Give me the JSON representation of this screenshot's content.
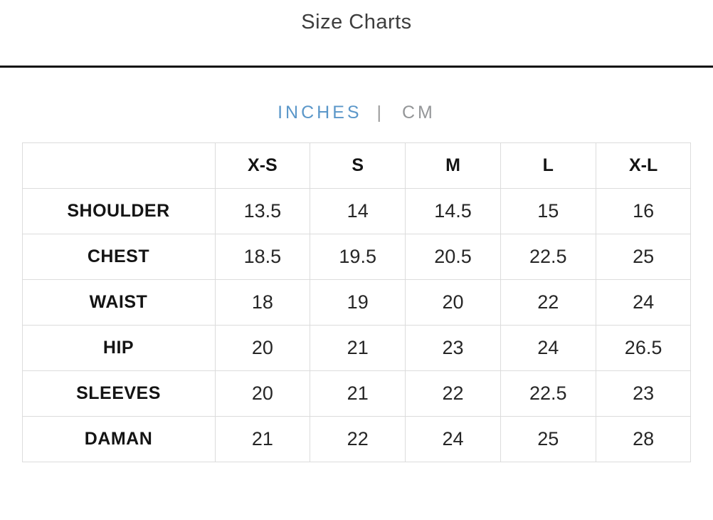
{
  "page": {
    "title": "Size Charts"
  },
  "unit_toggle": {
    "inches_label": "INCHES",
    "divider": "|",
    "cm_label": "CM",
    "active_option": "INCHES",
    "active_color": "#5b97c9",
    "inactive_color": "#949698"
  },
  "size_chart": {
    "columns": [
      "X-S",
      "S",
      "M",
      "L",
      "X-L"
    ],
    "rows": [
      {
        "label": "SHOULDER",
        "values": [
          "13.5",
          "14",
          "14.5",
          "15",
          "16"
        ]
      },
      {
        "label": "CHEST",
        "values": [
          "18.5",
          "19.5",
          "20.5",
          "22.5",
          "25"
        ]
      },
      {
        "label": "WAIST",
        "values": [
          "18",
          "19",
          "20",
          "22",
          "24"
        ]
      },
      {
        "label": "HIP",
        "values": [
          "20",
          "21",
          "23",
          "24",
          "26.5"
        ]
      },
      {
        "label": "SLEEVES",
        "values": [
          "20",
          "21",
          "22",
          "22.5",
          "23"
        ]
      },
      {
        "label": "DAMAN",
        "values": [
          "21",
          "22",
          "24",
          "25",
          "28"
        ]
      }
    ]
  },
  "colors": {
    "divider_rule": "#0d0d0d",
    "table_border": "#dcdcdc",
    "title_text": "#3d3d3d",
    "table_text": "#141414"
  }
}
